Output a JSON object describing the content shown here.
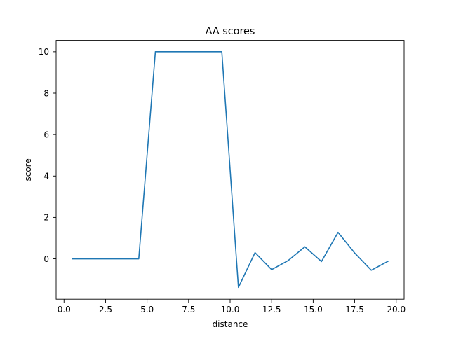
{
  "chart_data": {
    "type": "line",
    "title": "AA scores",
    "xlabel": "distance",
    "ylabel": "score",
    "xlim": [
      -0.475,
      20.475
    ],
    "ylim": [
      -1.95,
      10.55
    ],
    "xticks": [
      0.0,
      2.5,
      5.0,
      7.5,
      10.0,
      12.5,
      15.0,
      17.5,
      20.0
    ],
    "xtick_labels": [
      "0.0",
      "2.5",
      "5.0",
      "7.5",
      "10.0",
      "12.5",
      "15.0",
      "17.5",
      "20.0"
    ],
    "yticks": [
      0,
      2,
      4,
      6,
      8,
      10
    ],
    "ytick_labels": [
      "0",
      "2",
      "4",
      "6",
      "8",
      "10"
    ],
    "grid": false,
    "legend": "none",
    "series": [
      {
        "color": "#1f77b4",
        "x": [
          0.5,
          1.5,
          2.5,
          3.5,
          4.5,
          5.5,
          6.5,
          7.5,
          8.5,
          9.5,
          10.5,
          11.5,
          12.5,
          13.5,
          14.5,
          15.5,
          16.5,
          17.5,
          18.5,
          19.5
        ],
        "y": [
          0,
          0,
          0,
          0,
          0,
          10,
          10,
          10,
          10,
          10,
          -1.38,
          0.3,
          -0.52,
          -0.08,
          0.58,
          -0.13,
          1.28,
          0.28,
          -0.55,
          -0.12
        ]
      }
    ]
  }
}
